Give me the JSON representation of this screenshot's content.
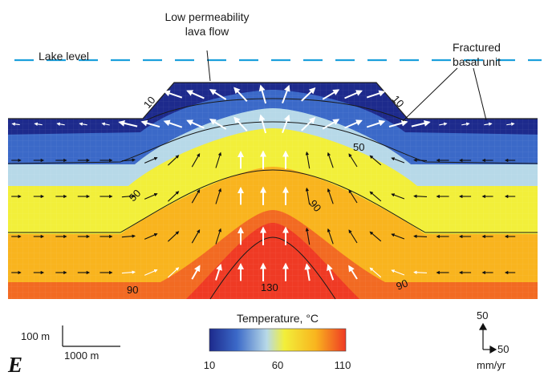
{
  "figure": {
    "panel_letter": "E",
    "annotations": {
      "lava_flow": [
        "Low permeability",
        "lava flow"
      ],
      "lake_level": "Lake level",
      "basal_unit": [
        "Fractured",
        "basal unit"
      ]
    },
    "contours": {
      "labels": [
        "10",
        "10",
        "50",
        "50",
        "90",
        "90",
        "90",
        "130"
      ]
    },
    "colorbar": {
      "title": "Temperature, °C",
      "ticks": [
        "10",
        "60",
        "110"
      ],
      "min": 10,
      "max": 110,
      "colors": [
        "#1d2a8c",
        "#3b69c8",
        "#b7d9e8",
        "#f2ef3a",
        "#f9b41e",
        "#ef3a24"
      ]
    },
    "scale_bar": {
      "vertical": "100 m",
      "horizontal": "1000 m"
    },
    "vector_scale": {
      "vertical": "50",
      "horizontal": "50",
      "units": "mm/yr"
    },
    "colors": {
      "lake_line": "#1ba0dc",
      "contour": "#1a1a1a",
      "arrow_fast": "#ffffff",
      "arrow_slow": "#111111"
    }
  }
}
